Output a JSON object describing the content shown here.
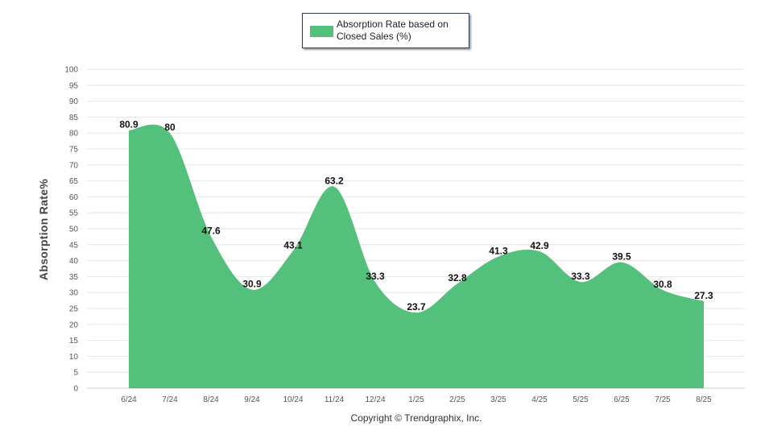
{
  "legend": {
    "label": "Absorption Rate based on Closed Sales (%)"
  },
  "copyright": "Copyright © Trendgraphix, Inc.",
  "colors": {
    "area": "#53c07b",
    "grid": "#e6e6e6",
    "axis": "#cfcfcf"
  },
  "chart_data": {
    "type": "area",
    "title": "",
    "xlabel": "",
    "ylabel": "Absorption Rate%",
    "ylim": [
      0,
      100
    ],
    "yticks": [
      0,
      5,
      10,
      15,
      20,
      25,
      30,
      35,
      40,
      45,
      50,
      55,
      60,
      65,
      70,
      75,
      80,
      85,
      90,
      95,
      100
    ],
    "grid": true,
    "legend_position": "top-center",
    "categories": [
      "6/24",
      "7/24",
      "8/24",
      "9/24",
      "10/24",
      "11/24",
      "12/24",
      "1/25",
      "2/25",
      "3/25",
      "4/25",
      "5/25",
      "6/25",
      "7/25",
      "8/25"
    ],
    "series": [
      {
        "name": "Absorption Rate based on Closed Sales (%)",
        "values": [
          80.9,
          80,
          47.6,
          30.9,
          43.1,
          63.2,
          33.3,
          23.7,
          32.8,
          41.3,
          42.9,
          33.3,
          39.5,
          30.8,
          27.3
        ]
      }
    ]
  }
}
